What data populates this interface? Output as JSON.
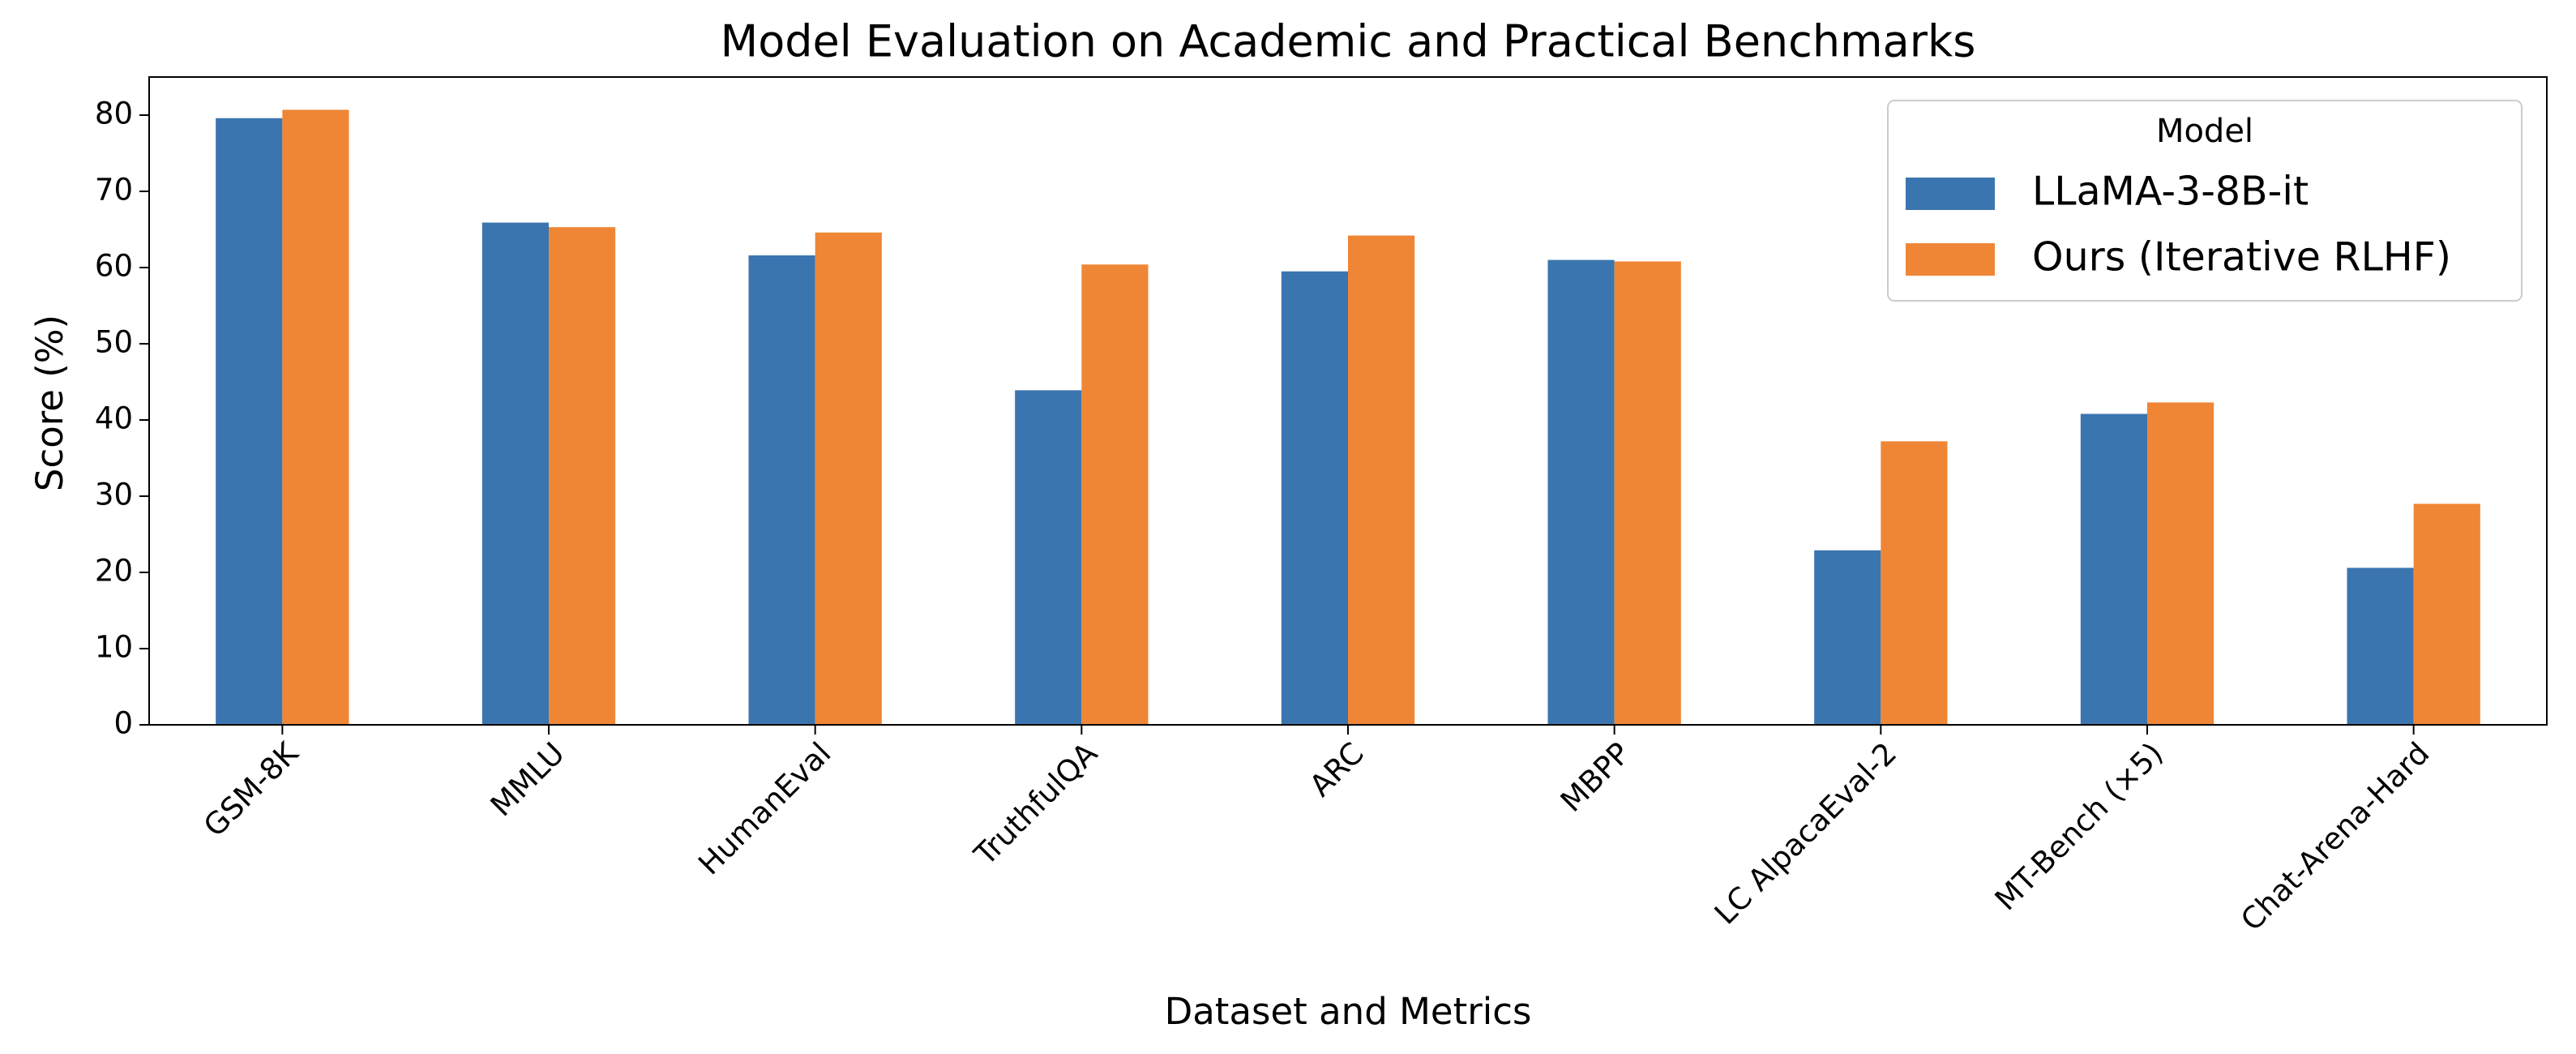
{
  "chart_data": {
    "type": "bar",
    "title": "Model Evaluation on Academic and Practical Benchmarks",
    "x_label": "Dataset and Metrics",
    "y_label": "Score (%)",
    "categories": [
      "GSM-8K",
      "MMLU",
      "HumanEval",
      "TruthfulQA",
      "ARC",
      "MBPP",
      "LC AlpacaEval-2",
      "MT-Bench (×5)",
      "Chat-Arena-Hard"
    ],
    "series": [
      {
        "name": "LLaMA-3-8B-it",
        "color": "#3b75af",
        "values": [
          79.6,
          65.9,
          61.6,
          43.9,
          59.5,
          61.0,
          22.9,
          40.8,
          20.6
        ]
      },
      {
        "name": "Ours (Iterative RLHF)",
        "color": "#ef8636",
        "values": [
          80.7,
          65.3,
          64.6,
          60.4,
          64.2,
          60.8,
          37.2,
          42.3,
          29.0
        ]
      }
    ],
    "ylim": [
      0,
      85
    ],
    "yticks": [
      0,
      10,
      20,
      30,
      40,
      50,
      60,
      70,
      80
    ],
    "legend_title": "Model",
    "legend_position": "upper right",
    "grid": false
  }
}
